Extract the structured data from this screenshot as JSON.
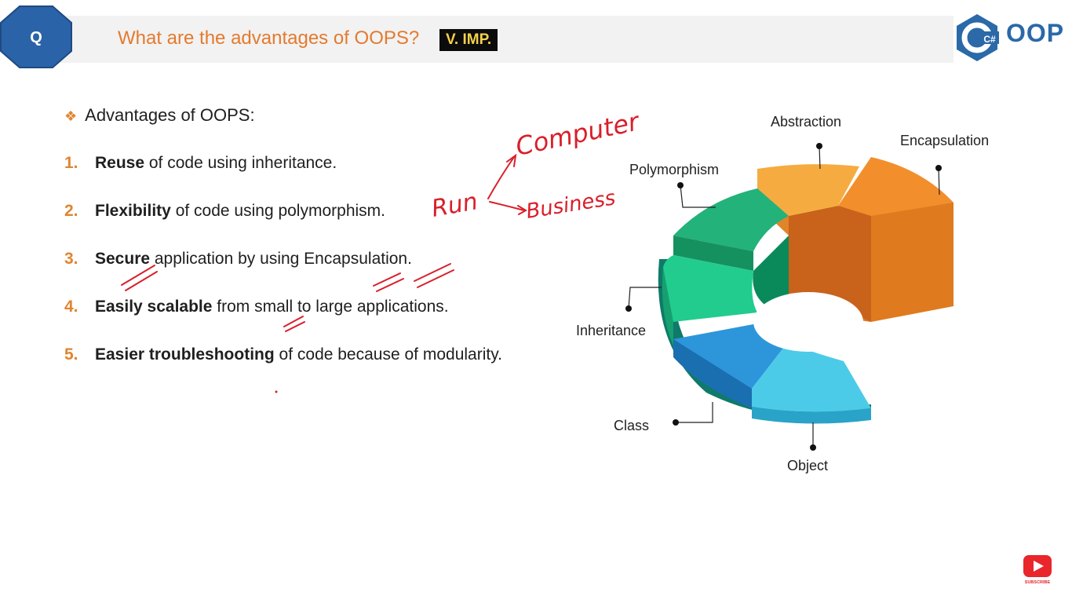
{
  "header": {
    "badge_letter": "Q",
    "title": "What are the advantages of OOPS?",
    "tag": "V. IMP.",
    "logo_mark": "C#",
    "logo_text": "OOP"
  },
  "content": {
    "intro": "Advantages of OOPS:",
    "points": [
      {
        "num": "1.",
        "keyword": "Reuse",
        "rest": " of code using inheritance."
      },
      {
        "num": "2.",
        "keyword": "Flexibility",
        "rest": " of code using polymorphism."
      },
      {
        "num": "3.",
        "keyword": "Secure",
        "rest": " application by using Encapsulation."
      },
      {
        "num": "4.",
        "keyword": "Easily scalable",
        "rest": " from small to large applications."
      },
      {
        "num": "5.",
        "keyword": "Easier troubleshooting",
        "rest": " of code because of modularity."
      }
    ]
  },
  "annotations": {
    "run": "Run",
    "computer": "Computer",
    "business": "Business"
  },
  "diagram": {
    "labels": {
      "abstraction": "Abstraction",
      "encapsulation": "Encapsulation",
      "polymorphism": "Polymorphism",
      "inheritance": "Inheritance",
      "class": "Class",
      "object": "Object"
    },
    "colors": {
      "abstraction": "#f5a93c",
      "encapsulation": "#f08b2a",
      "polymorphism": "#1fae73",
      "inheritance": "#20c88a",
      "class": "#2d93d6",
      "object": "#4ccbe8"
    }
  },
  "footer": {
    "subscribe": "SUBSCRIBE"
  }
}
